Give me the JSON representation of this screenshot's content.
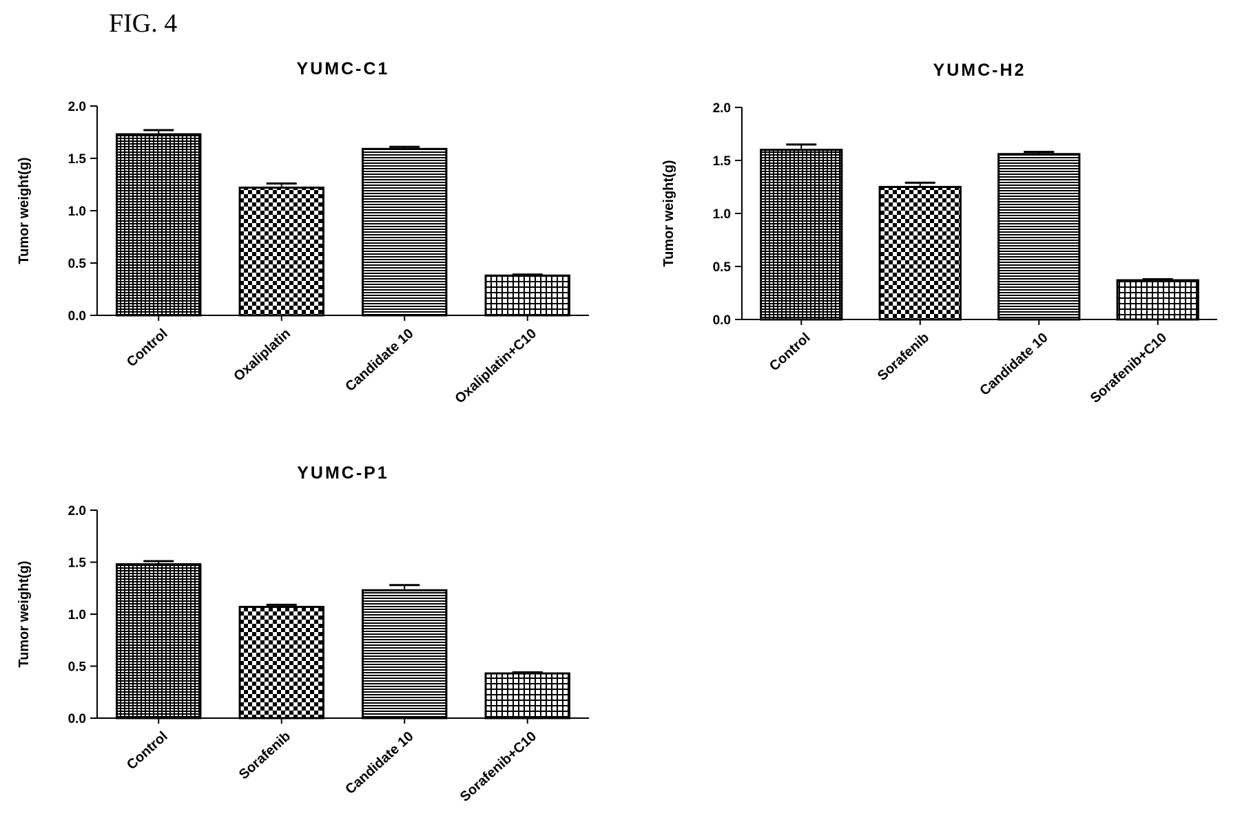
{
  "figure": {
    "label": "FIG. 4"
  },
  "colors": {
    "ink": "#000000",
    "background": "#ffffff"
  },
  "chart_data": [
    {
      "type": "bar",
      "title": "YUMC-C1",
      "xlabel": "",
      "ylabel": "Tumor weight(g)",
      "ylim": [
        0,
        2.0
      ],
      "yticks": [
        "0.0",
        "0.5",
        "1.0",
        "1.5",
        "2.0"
      ],
      "grid": false,
      "categories": [
        "Control",
        "Oxaliplatin",
        "Candidate 10",
        "Oxaliplatin+C10"
      ],
      "values": [
        1.73,
        1.22,
        1.59,
        0.38
      ],
      "errors": [
        0.04,
        0.04,
        0.02,
        0.01
      ],
      "patterns": [
        "dense-hatch",
        "checker",
        "horizontal-lines",
        "grid"
      ]
    },
    {
      "type": "bar",
      "title": "YUMC-H2",
      "xlabel": "",
      "ylabel": "Tumor weight(g)",
      "ylim": [
        0,
        2.0
      ],
      "yticks": [
        "0.0",
        "0.5",
        "1.0",
        "1.5",
        "2.0"
      ],
      "grid": false,
      "categories": [
        "Control",
        "Sorafenib",
        "Candidate 10",
        "Sorafenib+C10"
      ],
      "values": [
        1.6,
        1.25,
        1.56,
        0.37
      ],
      "errors": [
        0.05,
        0.04,
        0.02,
        0.01
      ],
      "patterns": [
        "dense-hatch",
        "checker",
        "horizontal-lines",
        "grid"
      ]
    },
    {
      "type": "bar",
      "title": "YUMC-P1",
      "xlabel": "",
      "ylabel": "Tumor weight(g)",
      "ylim": [
        0,
        2.0
      ],
      "yticks": [
        "0.0",
        "0.5",
        "1.0",
        "1.5",
        "2.0"
      ],
      "grid": false,
      "categories": [
        "Control",
        "Sorafenib",
        "Candidate 10",
        "Sorafenib+C10"
      ],
      "values": [
        1.48,
        1.07,
        1.23,
        0.43
      ],
      "errors": [
        0.03,
        0.02,
        0.05,
        0.01
      ],
      "patterns": [
        "dense-hatch",
        "checker",
        "horizontal-lines",
        "grid"
      ]
    }
  ]
}
